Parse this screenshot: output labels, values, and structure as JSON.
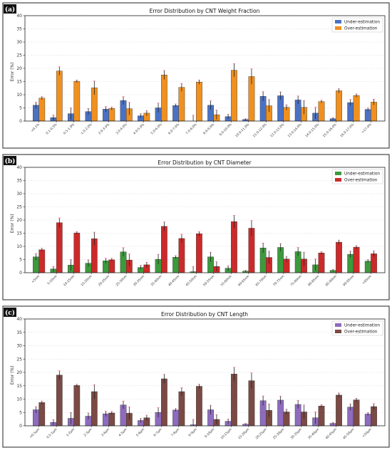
{
  "chart_data": [
    {
      "type": "bar",
      "panel_label": "(a)",
      "title": "Error Distribution by CNT Weight Fraction",
      "xlabel": "",
      "ylabel": "Error (%)",
      "ylim": [
        0,
        40
      ],
      "yticks": [
        0,
        5,
        10,
        15,
        20,
        25,
        30,
        35,
        40
      ],
      "grid": true,
      "legend_position": "top-right",
      "categories": [
        "<0.1%",
        "0.1-0.5%",
        "0.5-1.0%",
        "1.0-2.0%",
        "2.0-3.0%",
        "3.0-4.0%",
        "4.0-5.0%",
        "5.0-6.0%",
        "6.0-7.0%",
        "7.0-8.0%",
        "8.0-9.0%",
        "9.0-10.0%",
        "10.0-11.0%",
        "11.0-12.0%",
        "12.0-13.0%",
        "13.0-14.0%",
        "14.0-15.0%",
        "15.0-16.0%",
        "16.0-17.0%",
        ">17.0%"
      ],
      "series": [
        {
          "name": "Under-estimation",
          "color": "#4a72c4",
          "values": [
            6.0,
            1.3,
            2.8,
            3.6,
            4.5,
            7.8,
            2.0,
            5.0,
            5.9,
            0.0,
            6.0,
            1.7,
            0.6,
            9.4,
            9.6,
            8.0,
            3.0,
            0.9,
            7.0,
            4.4
          ],
          "errors": [
            1.2,
            1.0,
            2.2,
            1.2,
            1.0,
            1.5,
            0.8,
            1.8,
            0.6,
            2.2,
            1.7,
            0.9,
            0.3,
            1.8,
            1.5,
            1.5,
            2.2,
            0.4,
            1.2,
            0.6
          ]
        },
        {
          "name": "Over-estimation",
          "color": "#f0901e",
          "values": [
            8.7,
            19.0,
            15.1,
            12.6,
            4.8,
            4.7,
            3.0,
            17.5,
            12.8,
            14.8,
            2.4,
            19.3,
            16.9,
            5.8,
            5.2,
            5.2,
            7.4,
            11.5,
            9.7,
            7.2
          ],
          "errors": [
            0.6,
            1.6,
            0.5,
            2.6,
            0.6,
            2.4,
            1.0,
            1.7,
            1.5,
            0.8,
            1.8,
            2.5,
            2.9,
            2.4,
            1.0,
            2.6,
            0.5,
            0.8,
            0.6,
            1.1
          ]
        }
      ]
    },
    {
      "type": "bar",
      "panel_label": "(b)",
      "title": "Error Distribution by CNT Diameter",
      "xlabel": "",
      "ylabel": "Error (%)",
      "ylim": [
        0,
        40
      ],
      "yticks": [
        0,
        5,
        10,
        15,
        20,
        25,
        30,
        35,
        40
      ],
      "grid": true,
      "legend_position": "top-right",
      "categories": [
        "<5nm",
        "5-10nm",
        "10-15nm",
        "15-20nm",
        "20-25nm",
        "25-30nm",
        "30-35nm",
        "35-40nm",
        "40-45nm",
        "45-50nm",
        "50-55nm",
        "55-60nm",
        "60-65nm",
        "65-70nm",
        "70-75nm",
        "75-80nm",
        "80-85nm",
        "85-90nm",
        "90-95nm",
        ">95nm"
      ],
      "series": [
        {
          "name": "Under-estimation",
          "color": "#3c9a3c",
          "values": [
            6.0,
            1.4,
            2.9,
            3.6,
            4.5,
            7.9,
            2.0,
            5.1,
            5.9,
            0.4,
            6.0,
            1.7,
            0.6,
            9.4,
            9.6,
            8.0,
            3.0,
            0.9,
            7.0,
            4.4
          ],
          "errors": [
            1.3,
            1.0,
            2.1,
            1.3,
            1.0,
            1.6,
            0.8,
            1.9,
            0.6,
            2.0,
            1.8,
            0.9,
            0.3,
            1.9,
            1.5,
            1.6,
            2.2,
            0.4,
            1.2,
            0.6
          ]
        },
        {
          "name": "Over-estimation",
          "color": "#cc2a2a",
          "values": [
            8.7,
            19.0,
            15.1,
            12.9,
            4.9,
            4.8,
            3.0,
            17.6,
            13.0,
            14.8,
            2.4,
            19.4,
            16.9,
            5.8,
            5.2,
            5.2,
            7.5,
            11.6,
            9.7,
            7.2
          ],
          "errors": [
            0.6,
            1.8,
            0.5,
            2.5,
            0.6,
            2.3,
            1.0,
            1.7,
            1.6,
            0.8,
            1.8,
            2.4,
            2.9,
            2.4,
            1.0,
            2.6,
            0.5,
            0.8,
            0.6,
            1.1
          ]
        }
      ]
    },
    {
      "type": "bar",
      "panel_label": "(c)",
      "title": "Error Distribution by CNT Length",
      "xlabel": "",
      "ylabel": "Error (%)",
      "ylim": [
        0,
        40
      ],
      "yticks": [
        0,
        5,
        10,
        15,
        20,
        25,
        30,
        35,
        40
      ],
      "grid": true,
      "legend_position": "top-right",
      "categories": [
        "<0.5μm",
        "0.5-1μm",
        "1-2μm",
        "2-3μm",
        "3-4μm",
        "4-5μm",
        "5-6μm",
        "6-7μm",
        "7-8μm",
        "8-9μm",
        "9-10μm",
        "10-15μm",
        "15-20μm",
        "20-25μm",
        "25-30μm",
        "30-35μm",
        "35-40μm",
        "40-45μm",
        "45-50μm",
        ">50μm"
      ],
      "series": [
        {
          "name": "Under-estimation",
          "color": "#8e6bbf",
          "values": [
            6.0,
            1.3,
            2.8,
            3.6,
            4.5,
            7.8,
            2.0,
            5.0,
            5.9,
            0.4,
            6.0,
            1.7,
            0.6,
            9.4,
            9.6,
            8.0,
            3.0,
            0.9,
            7.0,
            4.4
          ],
          "errors": [
            1.2,
            1.0,
            2.2,
            1.2,
            1.0,
            1.5,
            0.8,
            1.8,
            0.6,
            2.0,
            1.7,
            0.9,
            0.3,
            1.8,
            1.5,
            1.5,
            2.2,
            0.4,
            1.2,
            0.6
          ]
        },
        {
          "name": "Over-estimation",
          "color": "#7b4a44",
          "values": [
            8.7,
            19.0,
            15.1,
            12.8,
            4.8,
            4.7,
            3.0,
            17.6,
            12.8,
            14.8,
            2.4,
            19.4,
            16.9,
            5.8,
            5.2,
            5.2,
            7.4,
            11.5,
            9.7,
            7.2
          ],
          "errors": [
            0.6,
            1.6,
            0.5,
            2.6,
            0.6,
            2.4,
            1.0,
            1.7,
            1.5,
            0.8,
            1.8,
            2.5,
            2.9,
            2.4,
            1.0,
            2.6,
            0.5,
            0.8,
            0.6,
            1.1
          ]
        }
      ]
    }
  ]
}
